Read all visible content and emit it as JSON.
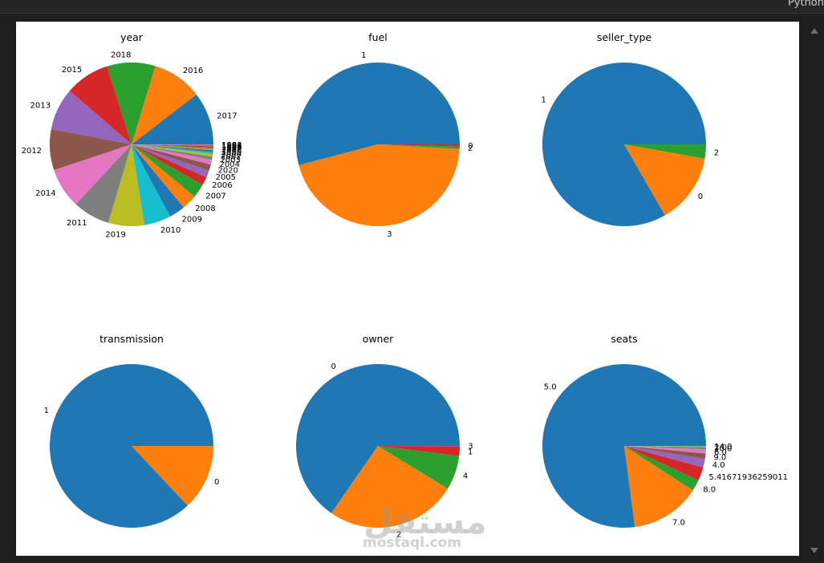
{
  "window": {
    "kernel_label": "Python"
  },
  "watermark": {
    "arabic": "مستقل",
    "latin": "mostaql.com"
  },
  "chart_data": [
    {
      "type": "pie",
      "title": "year",
      "labels": [
        "2017",
        "2016",
        "2018",
        "2015",
        "2013",
        "2012",
        "2014",
        "2011",
        "2019",
        "2010",
        "2009",
        "2008",
        "2007",
        "2006",
        "2005",
        "2020",
        "2004",
        "2003",
        "2002",
        "2000",
        "1999",
        "1998",
        "1997",
        "1996",
        "1995",
        "1994",
        "1983"
      ],
      "values": [
        10.25,
        9.7,
        9.4,
        8.65,
        8.2,
        7.95,
        7.85,
        7.2,
        7.0,
        5.2,
        3.1,
        2.95,
        2.7,
        1.65,
        1.35,
        1.2,
        0.95,
        0.6,
        0.5,
        0.4,
        0.35,
        0.3,
        0.25,
        0.2,
        0.15,
        0.12,
        0.1
      ]
    },
    {
      "type": "pie",
      "title": "fuel",
      "labels": [
        "1",
        "3",
        "2",
        "0"
      ],
      "values": [
        54.1,
        45.0,
        0.5,
        0.4
      ]
    },
    {
      "type": "pie",
      "title": "seller_type",
      "labels": [
        "1",
        "0",
        "2"
      ],
      "values": [
        83.3,
        13.9,
        2.8
      ]
    },
    {
      "type": "pie",
      "title": "transmission",
      "labels": [
        "1",
        "0"
      ],
      "values": [
        87.0,
        13.0
      ]
    },
    {
      "type": "pie",
      "title": "owner",
      "labels": [
        "0",
        "2",
        "4",
        "1",
        "3"
      ],
      "values": [
        65.4,
        25.9,
        6.8,
        1.9,
        0.05
      ]
    },
    {
      "type": "pie",
      "title": "seats",
      "labels": [
        "5.0",
        "7.0",
        "8.0",
        "5.41671936259011",
        "4.0",
        "9.0",
        "6.0",
        "10.0",
        "2.0",
        "14.0"
      ],
      "values": [
        75.5,
        13.5,
        2.2,
        2.6,
        1.7,
        1.0,
        0.8,
        0.4,
        0.15,
        0.1
      ]
    }
  ],
  "colors": [
    "#1f77b4",
    "#ff7f0e",
    "#2ca02c",
    "#d62728",
    "#9467bd",
    "#8c564b",
    "#e377c2",
    "#7f7f7f",
    "#bcbd22",
    "#17becf"
  ]
}
